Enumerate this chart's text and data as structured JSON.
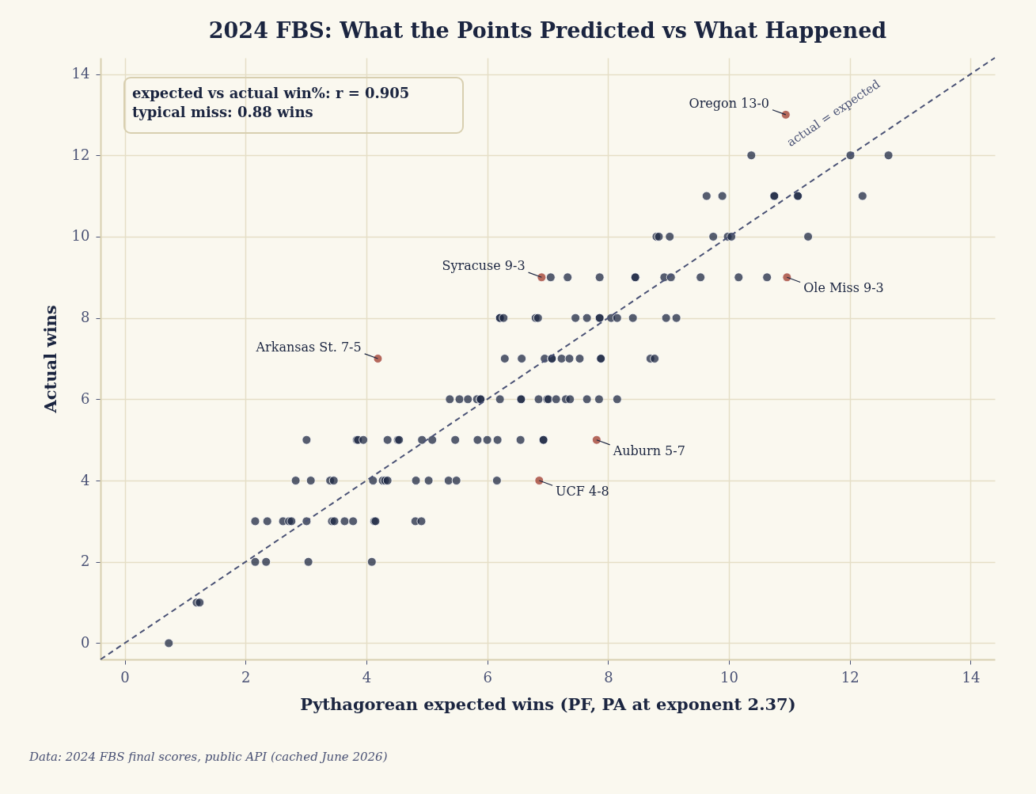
{
  "chart_data": {
    "type": "scatter",
    "title": "2024 FBS: What the Points Predicted vs What Happened",
    "xlabel": "Pythagorean expected wins  (PF, PA at exponent 2.37)",
    "ylabel": "Actual wins",
    "xlim": [
      -0.4,
      14.4
    ],
    "ylim": [
      -0.4,
      14.4
    ],
    "xticks": [
      0,
      2,
      4,
      6,
      8,
      10,
      12,
      14
    ],
    "yticks": [
      0,
      2,
      4,
      6,
      8,
      10,
      12,
      14
    ],
    "grid": true,
    "marker": "circle",
    "series": [
      {
        "color": "#1f2a44",
        "x": [
          0.73,
          1.19,
          1.24,
          2.16,
          2.34,
          3.04,
          4.09,
          2.16,
          2.36,
          2.62,
          2.72,
          2.76,
          3.01,
          3.43,
          3.47,
          3.64,
          3.78,
          4.13,
          4.15,
          4.81,
          4.91,
          2.83,
          3.08,
          3.4,
          3.46,
          4.11,
          4.27,
          4.31,
          4.35,
          4.82,
          5.03,
          5.36,
          5.49,
          6.16,
          3.01,
          3.84,
          3.86,
          3.95,
          4.35,
          4.52,
          4.54,
          4.92,
          5.09,
          5.47,
          5.84,
          6.0,
          6.17,
          6.55,
          6.93,
          6.93,
          5.38,
          5.54,
          5.68,
          5.83,
          5.89,
          5.89,
          6.21,
          6.56,
          6.56,
          6.85,
          6.99,
          7.01,
          7.14,
          7.3,
          7.37,
          7.65,
          7.85,
          8.15,
          6.29,
          6.57,
          6.95,
          7.07,
          7.07,
          7.23,
          7.36,
          7.53,
          7.88,
          7.88,
          8.7,
          8.77,
          6.21,
          6.21,
          6.27,
          6.8,
          6.84,
          7.46,
          7.65,
          7.86,
          7.86,
          8.05,
          8.15,
          8.41,
          8.96,
          9.13,
          7.05,
          7.33,
          7.86,
          8.45,
          8.45,
          8.93,
          9.04,
          9.53,
          10.16,
          10.63,
          8.8,
          8.84,
          9.02,
          9.74,
          9.98,
          10.04,
          11.31,
          9.63,
          9.89,
          10.75,
          10.75,
          11.14,
          11.14,
          12.21,
          10.37,
          12.01,
          12.64
        ],
        "values": [
          0,
          1,
          1,
          2,
          2,
          2,
          2,
          3,
          3,
          3,
          3,
          3,
          3,
          3,
          3,
          3,
          3,
          3,
          3,
          3,
          3,
          4,
          4,
          4,
          4,
          4,
          4,
          4,
          4,
          4,
          4,
          4,
          4,
          4,
          5,
          5,
          5,
          5,
          5,
          5,
          5,
          5,
          5,
          5,
          5,
          5,
          5,
          5,
          5,
          5,
          6,
          6,
          6,
          6,
          6,
          6,
          6,
          6,
          6,
          6,
          6,
          6,
          6,
          6,
          6,
          6,
          6,
          6,
          7,
          7,
          7,
          7,
          7,
          7,
          7,
          7,
          7,
          7,
          7,
          7,
          8,
          8,
          8,
          8,
          8,
          8,
          8,
          8,
          8,
          8,
          8,
          8,
          8,
          8,
          9,
          9,
          9,
          9,
          9,
          9,
          9,
          9,
          9,
          9,
          10,
          10,
          10,
          10,
          10,
          10,
          10,
          11,
          11,
          11,
          11,
          11,
          11,
          11,
          12,
          12,
          12
        ]
      },
      {
        "color": "#9e3a2b",
        "x": [
          10.94,
          6.9,
          4.19,
          10.96,
          7.81,
          6.86
        ],
        "values": [
          13,
          9,
          7,
          9,
          5,
          4
        ]
      },
      {
        "type": "line",
        "color": "#4a5275",
        "line_style": "dashed",
        "marker": "none",
        "x": [
          -0.4,
          14.4
        ],
        "values": [
          -0.4,
          14.4
        ]
      }
    ],
    "annotations": [
      "actual = expected",
      "expected vs actual win%:  r = 0.905",
      "typical miss:  0.88 wins",
      {
        "text": "Oregon 13-0",
        "x": 10.94,
        "y": 13
      },
      {
        "text": "Syracuse 9-3",
        "x": 6.9,
        "y": 9
      },
      {
        "text": "Arkansas St. 7-5",
        "x": 4.19,
        "y": 7
      },
      {
        "text": "Ole Miss 9-3",
        "x": 10.96,
        "y": 9
      },
      {
        "text": "Auburn 5-7",
        "x": 7.81,
        "y": 5
      },
      {
        "text": "UCF 4-8",
        "x": 6.86,
        "y": 4
      },
      "Data: 2024 FBS final scores, public API (cached June 2026)"
    ]
  }
}
